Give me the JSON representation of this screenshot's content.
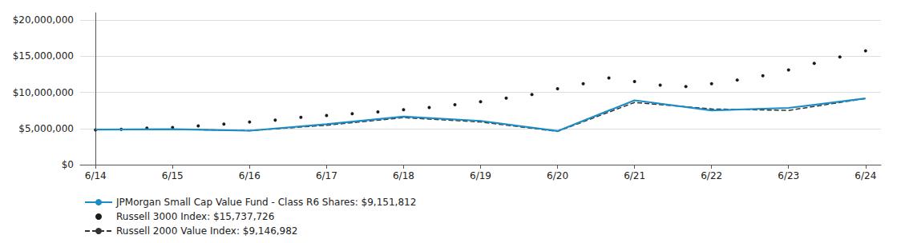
{
  "chart_data": {
    "type": "line",
    "series": [
      {
        "name": "JPMorgan Small Cap Value Fund - Class R6 Shares: $9,151,812",
        "color": "#1b8dc4",
        "line_style": "solid",
        "marker": "none",
        "x": [
          0,
          1,
          2,
          3,
          4,
          5,
          6,
          7,
          8,
          9,
          10
        ],
        "values": [
          4850000,
          4900000,
          4700000,
          5600000,
          6650000,
          6050000,
          4650000,
          8900000,
          7500000,
          7850000,
          9151812
        ]
      },
      {
        "name": "Russell 3000 Index: $15,737,726",
        "color": "#1a1a1a",
        "line_style": "none",
        "marker": "dot",
        "x": [
          0,
          0.3333333333333333,
          0.6666666666666666,
          1,
          1.3333333333333333,
          1.6666666666666667,
          2,
          2.3333333333333335,
          2.6666666666666665,
          3,
          3.3333333333333335,
          3.6666666666666665,
          4,
          4.333333333333333,
          4.666666666666667,
          5,
          5.333333333333333,
          5.666666666666667,
          6,
          6.333333333333333,
          6.666666666666667,
          7,
          7.333333333333333,
          7.666666666666667,
          8,
          8.333333333333334,
          8.666666666666666,
          9,
          9.333333333333334,
          9.666666666666666,
          10
        ],
        "values": [
          4800000,
          4900000,
          5050000,
          5150000,
          5350000,
          5600000,
          5900000,
          6150000,
          6550000,
          6800000,
          7050000,
          7300000,
          7600000,
          7900000,
          8300000,
          8700000,
          9200000,
          9700000,
          10500000,
          11200000,
          12000000,
          11500000,
          11000000,
          10800000,
          11200000,
          11700000,
          12300000,
          13100000,
          14000000,
          14900000,
          15737726
        ]
      },
      {
        "name": "Russell 2000 Value Index: $9,146,982",
        "color": "#333333",
        "line_style": "dashed",
        "marker": "none",
        "x": [
          0,
          1,
          2,
          3,
          4,
          5,
          6,
          7,
          8,
          9,
          10
        ],
        "values": [
          4850000,
          4900000,
          4700000,
          5450000,
          6500000,
          5900000,
          4600000,
          8600000,
          7700000,
          7500000,
          9146982
        ]
      }
    ],
    "xlim": [
      -0.2,
      10.2
    ],
    "xticks": [
      {
        "value": 0,
        "label": "6/14"
      },
      {
        "value": 1,
        "label": "6/15"
      },
      {
        "value": 2,
        "label": "6/16"
      },
      {
        "value": 3,
        "label": "6/17"
      },
      {
        "value": 4,
        "label": "6/18"
      },
      {
        "value": 5,
        "label": "6/19"
      },
      {
        "value": 6,
        "label": "6/20"
      },
      {
        "value": 7,
        "label": "6/21"
      },
      {
        "value": 8,
        "label": "6/22"
      },
      {
        "value": 9,
        "label": "6/23"
      },
      {
        "value": 10,
        "label": "6/24"
      }
    ],
    "ylim": [
      0,
      21000000
    ],
    "yticks": [
      {
        "value": 0,
        "label": "$0"
      },
      {
        "value": 5000000,
        "label": "$5,000,000"
      },
      {
        "value": 10000000,
        "label": "$10,000,000"
      },
      {
        "value": 15000000,
        "label": "$15,000,000"
      },
      {
        "value": 20000000,
        "label": "$20,000,000"
      }
    ],
    "grid": true,
    "legend": "lower left"
  }
}
